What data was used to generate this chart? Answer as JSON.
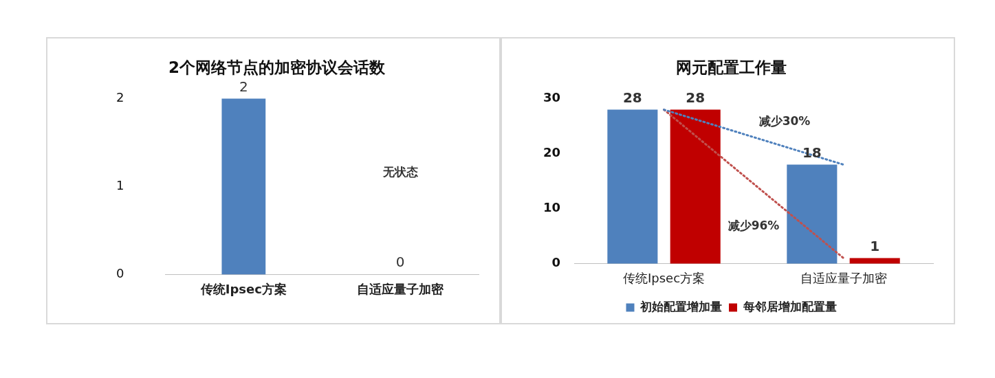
{
  "chart_data": [
    {
      "type": "bar",
      "title": "2个网络节点的加密协议会话数",
      "categories": [
        "传统Ipsec方案",
        "自适应量子加密"
      ],
      "values": [
        2,
        0
      ],
      "color": "#4f81bd",
      "ylim": [
        0,
        2
      ],
      "yticks": [
        0,
        1,
        2
      ],
      "grid": false,
      "legend": false,
      "data_labels": true,
      "annotations": [
        "无状态"
      ]
    },
    {
      "type": "bar",
      "title": "网元配置工作量",
      "categories": [
        "传统Ipsec方案",
        "自适应量子加密"
      ],
      "ylim": [
        0,
        30
      ],
      "yticks": [
        0,
        10,
        20,
        30
      ],
      "grid": false,
      "legend": "bottom",
      "series": [
        {
          "name": "初始配置增加量",
          "color": "#4f81bd",
          "values": [
            28,
            18
          ],
          "value_labels": [
            "28",
            "18"
          ]
        },
        {
          "name": "每邻居增加配置量",
          "color": "#c00000",
          "values": [
            28,
            1
          ],
          "value_labels": [
            "28",
            "1"
          ]
        },
        {
          "type": "line",
          "color": "#4f81bd",
          "values": [
            28,
            18
          ],
          "line_style": "dotted",
          "marker": "none"
        },
        {
          "type": "line",
          "color": "#c0504d",
          "values": [
            28,
            1
          ],
          "line_style": "dotted",
          "marker": "none"
        }
      ],
      "annotations": [
        "减少30%",
        "减少96%"
      ]
    }
  ]
}
